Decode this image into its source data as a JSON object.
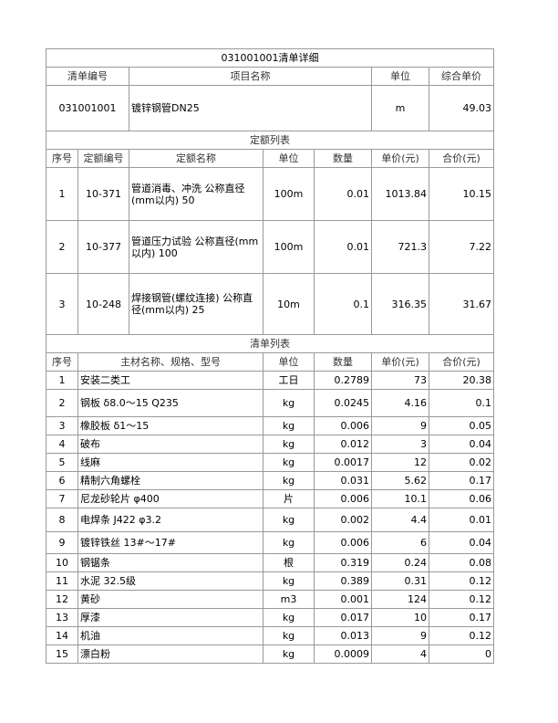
{
  "title": "031001001清单详细",
  "bill_header": {
    "code": "清单编号",
    "name": "项目名称",
    "unit": "单位",
    "unit_price": "综合单价"
  },
  "bill_item": {
    "code": "031001001",
    "name": "镀锌钢管DN25",
    "unit": "m",
    "unit_price": "49.03"
  },
  "quota_section_title": "定额列表",
  "quota_header": {
    "no": "序号",
    "code": "定额编号",
    "name": "定额名称",
    "unit": "单位",
    "qty": "数量",
    "price": "单价(元)",
    "total": "合价(元)"
  },
  "quota_rows": [
    {
      "no": "1",
      "code": "10-371",
      "name": "管道消毒、冲洗 公称直径(mm以内) 50",
      "unit": "100m",
      "qty": "0.01",
      "price": "1013.84",
      "total": "10.15"
    },
    {
      "no": "2",
      "code": "10-377",
      "name": "管道压力试验 公称直径(mm以内) 100",
      "unit": "100m",
      "qty": "0.01",
      "price": "721.3",
      "total": "7.22"
    },
    {
      "no": "3",
      "code": "10-248",
      "name": "焊接钢管(螺纹连接) 公称直径(mm以内) 25",
      "unit": "10m",
      "qty": "0.1",
      "price": "316.35",
      "total": "31.67"
    }
  ],
  "material_section_title": "清单列表",
  "material_header": {
    "no": "序号",
    "name": "主材名称、规格、型号",
    "unit": "单位",
    "qty": "数量",
    "price": "单价(元)",
    "total": "合价(元)"
  },
  "material_rows": [
    {
      "no": "1",
      "name": "安装二类工",
      "unit": "工日",
      "qty": "0.2789",
      "price": "73",
      "total": "20.38"
    },
    {
      "no": "2",
      "name": "钢板 δ8.0～15 Q235",
      "unit": "kg",
      "qty": "0.0245",
      "price": "4.16",
      "total": "0.1"
    },
    {
      "no": "3",
      "name": "橡胶板 δ1～15",
      "unit": "kg",
      "qty": "0.006",
      "price": "9",
      "total": "0.05"
    },
    {
      "no": "4",
      "name": "破布",
      "unit": "kg",
      "qty": "0.012",
      "price": "3",
      "total": "0.04"
    },
    {
      "no": "5",
      "name": "线麻",
      "unit": "kg",
      "qty": "0.0017",
      "price": "12",
      "total": "0.02"
    },
    {
      "no": "6",
      "name": "精制六角螺栓",
      "unit": "kg",
      "qty": "0.031",
      "price": "5.62",
      "total": "0.17"
    },
    {
      "no": "7",
      "name": "尼龙砂轮片 φ400",
      "unit": "片",
      "qty": "0.006",
      "price": "10.1",
      "total": "0.06"
    },
    {
      "no": "8",
      "name": "电焊条 J422 φ3.2",
      "unit": "kg",
      "qty": "0.002",
      "price": "4.4",
      "total": "0.01"
    },
    {
      "no": "9",
      "name": "镀锌铁丝 13#～17#",
      "unit": "kg",
      "qty": "0.006",
      "price": "6",
      "total": "0.04"
    },
    {
      "no": "10",
      "name": "钢锯条",
      "unit": "根",
      "qty": "0.319",
      "price": "0.24",
      "total": "0.08"
    },
    {
      "no": "11",
      "name": "水泥 32.5级",
      "unit": "kg",
      "qty": "0.389",
      "price": "0.31",
      "total": "0.12"
    },
    {
      "no": "12",
      "name": "黄砂",
      "unit": "m3",
      "qty": "0.001",
      "price": "124",
      "total": "0.12"
    },
    {
      "no": "13",
      "name": "厚漆",
      "unit": "kg",
      "qty": "0.017",
      "price": "10",
      "total": "0.17"
    },
    {
      "no": "14",
      "name": "机油",
      "unit": "kg",
      "qty": "0.013",
      "price": "9",
      "total": "0.12"
    },
    {
      "no": "15",
      "name": "漂白粉",
      "unit": "kg",
      "qty": "0.0009",
      "price": "4",
      "total": "0"
    }
  ]
}
